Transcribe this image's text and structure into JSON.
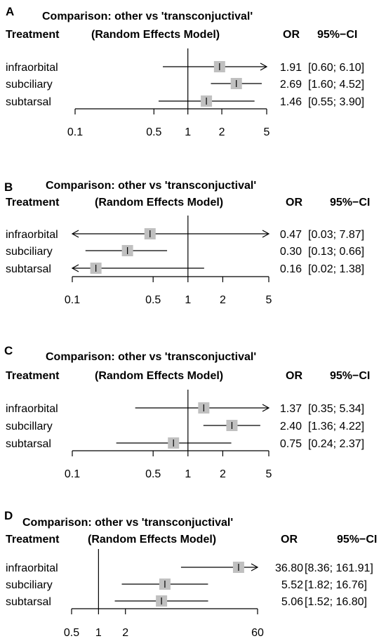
{
  "chart_data": [
    {
      "type": "forest",
      "panel_label": "A",
      "title": "Comparison: other vs 'transconjuctival'",
      "col_treatment": "Treatment",
      "col_model": "(Random Effects Model)",
      "col_or": "OR",
      "col_ci": "95%−CI",
      "x_scale": "log",
      "x_ticks": [
        "0.1",
        "0.5",
        "1",
        "2",
        "5"
      ],
      "rows": [
        {
          "label": "infraorbital",
          "or": 1.91,
          "lo": 0.6,
          "hi": 6.1,
          "or_text": "1.91",
          "ci_text": "[0.60; 6.10]"
        },
        {
          "label": "subciliary",
          "or": 2.69,
          "lo": 1.6,
          "hi": 4.52,
          "or_text": "2.69",
          "ci_text": "[1.60; 4.52]"
        },
        {
          "label": "subtarsal",
          "or": 1.46,
          "lo": 0.55,
          "hi": 3.9,
          "or_text": "1.46",
          "ci_text": "[0.55; 3.90]"
        }
      ]
    },
    {
      "type": "forest",
      "panel_label": "B",
      "title": "Comparison: other vs 'transconjuctival'",
      "col_treatment": "Treatment",
      "col_model": "(Random Effects Model)",
      "col_or": "OR",
      "col_ci": "95%−CI",
      "x_scale": "log",
      "x_ticks": [
        "0.1",
        "0.5",
        "1",
        "2",
        "5"
      ],
      "rows": [
        {
          "label": "infraorbital",
          "or": 0.47,
          "lo": 0.03,
          "hi": 7.87,
          "or_text": "0.47",
          "ci_text": "[0.03; 7.87]"
        },
        {
          "label": "subciliary",
          "or": 0.3,
          "lo": 0.13,
          "hi": 0.66,
          "or_text": "0.30",
          "ci_text": "[0.13; 0.66]"
        },
        {
          "label": "subtarsal",
          "or": 0.16,
          "lo": 0.02,
          "hi": 1.38,
          "or_text": "0.16",
          "ci_text": "[0.02; 1.38]"
        }
      ]
    },
    {
      "type": "forest",
      "panel_label": "C",
      "title": "Comparison: other vs 'transconjuctival'",
      "col_treatment": "Treatment",
      "col_model": "(Random Effects Model)",
      "col_or": "OR",
      "col_ci": "95%−CI",
      "x_scale": "log",
      "x_ticks": [
        "0.1",
        "0.5",
        "1",
        "2",
        "5"
      ],
      "rows": [
        {
          "label": "infraorbital",
          "or": 1.37,
          "lo": 0.35,
          "hi": 5.34,
          "or_text": "1.37",
          "ci_text": "[0.35; 5.34]"
        },
        {
          "label": "subcillary",
          "or": 2.4,
          "lo": 1.36,
          "hi": 4.22,
          "or_text": "2.40",
          "ci_text": "[1.36; 4.22]"
        },
        {
          "label": "subtarsal",
          "or": 0.75,
          "lo": 0.24,
          "hi": 2.37,
          "or_text": "0.75",
          "ci_text": "[0.24; 2.37]"
        }
      ]
    },
    {
      "type": "forest",
      "panel_label": "D",
      "title": "Comparison: other vs 'transconjuctival'",
      "col_treatment": "Treatment",
      "col_model": "(Random Effects Model)",
      "col_or": "OR",
      "col_ci": "95%−CI",
      "x_scale": "log",
      "x_ticks": [
        "0.5",
        "1",
        "2",
        "60"
      ],
      "rows": [
        {
          "label": "infraorbital",
          "or": 36.8,
          "lo": 8.36,
          "hi": 161.91,
          "or_text": "36.80",
          "ci_text": "[8.36; 161.91]"
        },
        {
          "label": "subciliary",
          "or": 5.52,
          "lo": 1.82,
          "hi": 16.76,
          "or_text": "5.52",
          "ci_text": "[1.82;  16.76]"
        },
        {
          "label": "subtarsal",
          "or": 5.06,
          "lo": 1.52,
          "hi": 16.8,
          "or_text": "5.06",
          "ci_text": "[1.52;  16.80]"
        }
      ]
    }
  ],
  "colors": {
    "box": "#c0c0c0",
    "line": "#000000",
    "text": "#000000"
  }
}
